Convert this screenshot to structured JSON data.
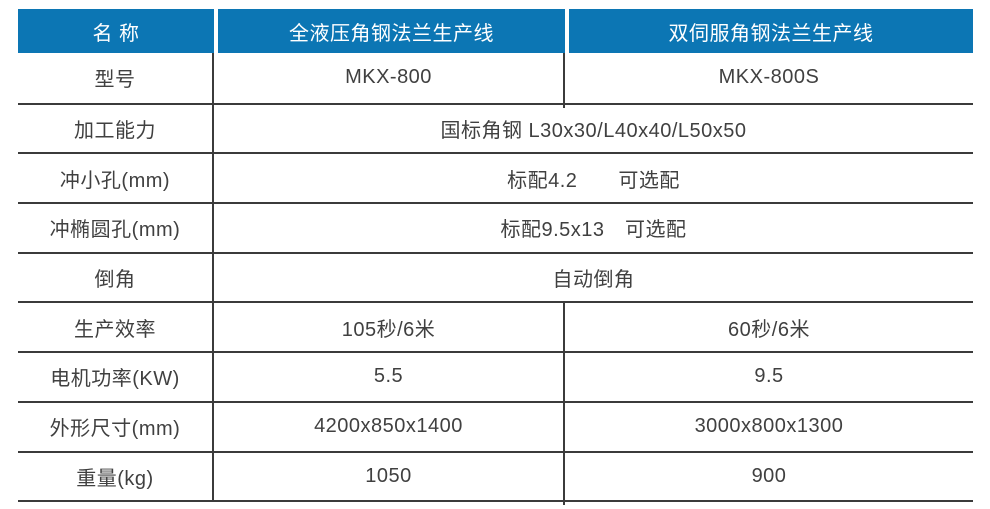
{
  "table": {
    "header": {
      "name_label": "名 称",
      "product1": "全液压角钢法兰生产线",
      "product2": "双伺服角钢法兰生产线"
    },
    "rows": [
      {
        "label": "型号",
        "span": false,
        "values": [
          "MKX-800",
          "MKX-800S"
        ]
      },
      {
        "label": "加工能力",
        "span": true,
        "values": [
          "国标角钢 L30x30/L40x40/L50x50"
        ]
      },
      {
        "label": "冲小孔(mm)",
        "span": true,
        "values": [
          "标配4.2　　可选配"
        ]
      },
      {
        "label": "冲椭圆孔(mm)",
        "span": true,
        "values": [
          "标配9.5x13　可选配"
        ]
      },
      {
        "label": "倒角",
        "span": true,
        "values": [
          "自动倒角"
        ]
      },
      {
        "label": "生产效率",
        "span": false,
        "values": [
          "105秒/6米",
          "60秒/6米"
        ]
      },
      {
        "label": "电机功率(KW)",
        "span": false,
        "values": [
          "5.5",
          "9.5"
        ]
      },
      {
        "label": "外形尺寸(mm)",
        "span": false,
        "values": [
          "4200x850x1400",
          "3000x800x1300"
        ]
      },
      {
        "label": "重量(kg)",
        "span": false,
        "values": [
          "1050",
          "900"
        ]
      }
    ]
  },
  "colors": {
    "header_bg": "#0C76B4",
    "header_text": "#FFFFFF",
    "body_text": "#404040",
    "border": "#3B3B3B"
  }
}
